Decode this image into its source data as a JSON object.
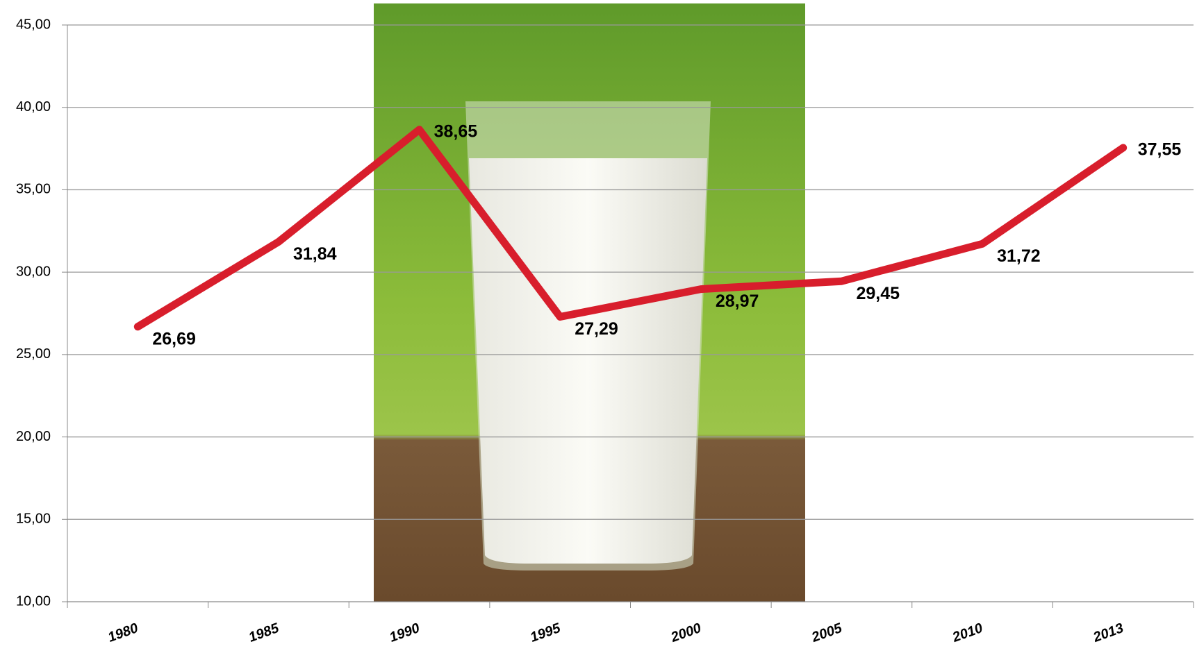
{
  "chart_data": {
    "type": "line",
    "categories": [
      "1980",
      "1985",
      "1990",
      "1995",
      "2000",
      "2005",
      "2010",
      "2013"
    ],
    "series": [
      {
        "color": "#d81e2c",
        "values": [
          26.69,
          31.84,
          38.65,
          27.29,
          28.97,
          29.45,
          31.72,
          37.55
        ],
        "value_labels": [
          "26,69",
          "31,84",
          "38,65",
          "27,29",
          "28,97",
          "29,45",
          "31,72",
          "37,55"
        ]
      }
    ],
    "ylim": [
      10,
      45
    ],
    "yticks": [
      {
        "value": 10,
        "label": "10,00"
      },
      {
        "value": 15,
        "label": "15,00"
      },
      {
        "value": 20,
        "label": "20,00"
      },
      {
        "value": 25,
        "label": "25,00"
      },
      {
        "value": 30,
        "label": "30,00"
      },
      {
        "value": 35,
        "label": "35,00"
      },
      {
        "value": 40,
        "label": "40,00"
      },
      {
        "value": 45,
        "label": "45,00"
      }
    ],
    "grid": true
  }
}
